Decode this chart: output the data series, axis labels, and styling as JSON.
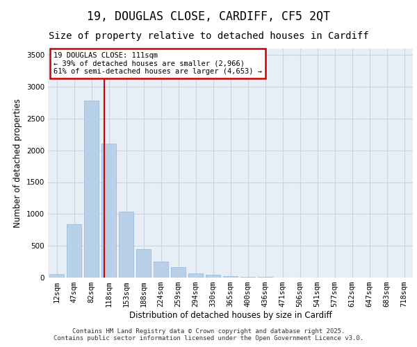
{
  "title_line1": "19, DOUGLAS CLOSE, CARDIFF, CF5 2QT",
  "title_line2": "Size of property relative to detached houses in Cardiff",
  "xlabel": "Distribution of detached houses by size in Cardiff",
  "ylabel": "Number of detached properties",
  "categories": [
    "12sqm",
    "47sqm",
    "82sqm",
    "118sqm",
    "153sqm",
    "188sqm",
    "224sqm",
    "259sqm",
    "294sqm",
    "330sqm",
    "365sqm",
    "400sqm",
    "436sqm",
    "471sqm",
    "506sqm",
    "541sqm",
    "577sqm",
    "612sqm",
    "647sqm",
    "683sqm",
    "718sqm"
  ],
  "values": [
    55,
    840,
    2780,
    2110,
    1040,
    450,
    250,
    160,
    65,
    45,
    25,
    15,
    8,
    5,
    3,
    2,
    1,
    1,
    0,
    0,
    0
  ],
  "bar_color": "#b8d0e8",
  "bar_edge_color": "#90b8d8",
  "grid_color": "#c8d4e4",
  "bg_color": "#e8eef6",
  "vline_color": "#cc0000",
  "vline_pos": 2.75,
  "annotation_text": "19 DOUGLAS CLOSE: 111sqm\n← 39% of detached houses are smaller (2,966)\n61% of semi-detached houses are larger (4,653) →",
  "annotation_box_color": "#cc0000",
  "ylim": [
    0,
    3600
  ],
  "yticks": [
    0,
    500,
    1000,
    1500,
    2000,
    2500,
    3000,
    3500
  ],
  "footer_line1": "Contains HM Land Registry data © Crown copyright and database right 2025.",
  "footer_line2": "Contains public sector information licensed under the Open Government Licence v3.0.",
  "title_fontsize": 12,
  "subtitle_fontsize": 10,
  "tick_fontsize": 7.5,
  "ylabel_fontsize": 8.5,
  "xlabel_fontsize": 8.5,
  "footer_fontsize": 6.5,
  "ann_fontsize": 7.5
}
